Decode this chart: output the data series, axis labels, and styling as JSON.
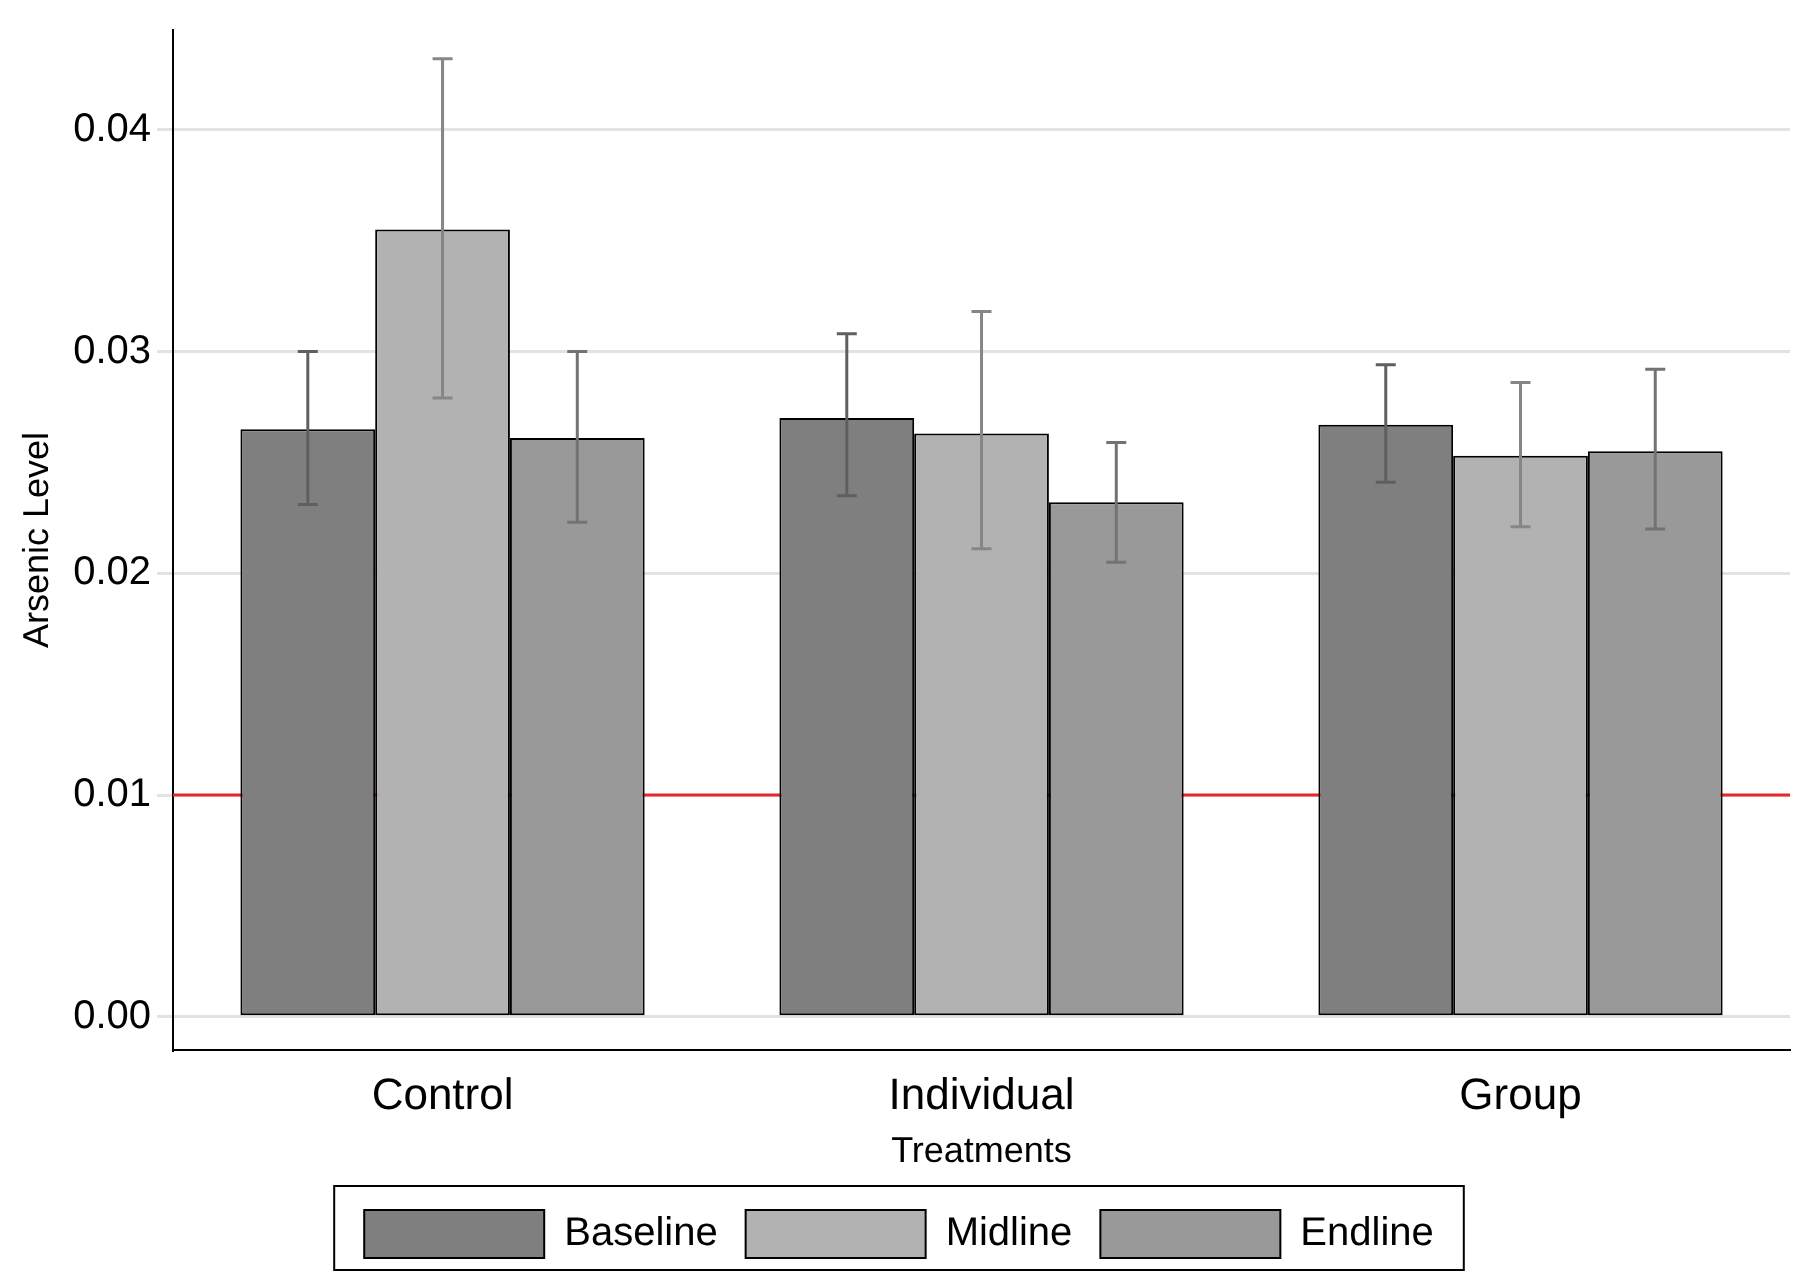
{
  "chart_data": {
    "type": "bar",
    "xlabel": "Treatments",
    "ylabel": "Arsenic Level",
    "categories": [
      "Control",
      "Individual",
      "Group"
    ],
    "series": [
      {
        "name": "Baseline",
        "color": "#7f7f7f",
        "values": [
          0.0265,
          0.027,
          0.0267
        ],
        "errors": [
          [
            0.0231,
            0.03
          ],
          [
            0.0235,
            0.0308
          ],
          [
            0.0241,
            0.0294
          ]
        ]
      },
      {
        "name": "Midline",
        "color": "#b2b2b2",
        "values": [
          0.0355,
          0.0263,
          0.0253
        ],
        "errors": [
          [
            0.0279,
            0.0432
          ],
          [
            0.0211,
            0.0318
          ],
          [
            0.0221,
            0.0286
          ]
        ]
      },
      {
        "name": "Endline",
        "color": "#999999",
        "values": [
          0.0261,
          0.0232,
          0.0255
        ],
        "errors": [
          [
            0.0223,
            0.03
          ],
          [
            0.0205,
            0.0259
          ],
          [
            0.022,
            0.0292
          ]
        ]
      }
    ],
    "ylim": [
      -0.0015,
      0.0445
    ],
    "yticks": [
      {
        "value": 0,
        "label": "0.00"
      },
      0.01,
      0.02,
      0.03,
      0.04
    ],
    "ref_lines": [
      {
        "axis": "y",
        "value": 0.01,
        "color": "#e8262a"
      }
    ],
    "grid": "y",
    "legend": "bottom"
  }
}
